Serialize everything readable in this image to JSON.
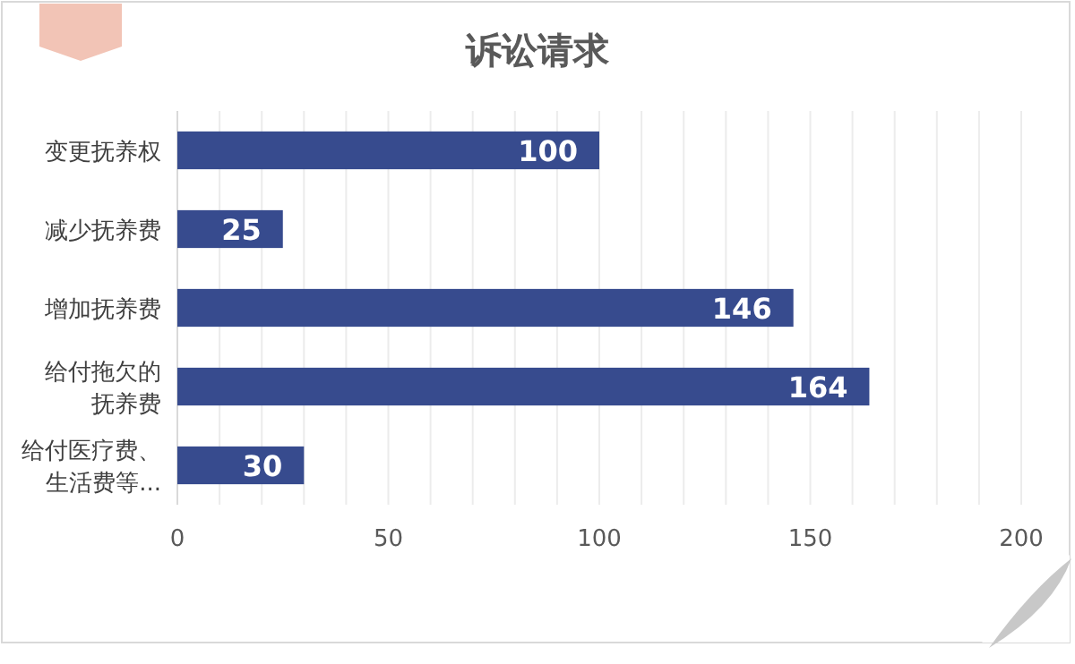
{
  "chart_data": {
    "type": "bar",
    "orientation": "horizontal",
    "title": "诉讼请求",
    "categories": [
      "变更抚养权",
      "减少抚养费",
      "增加抚养费",
      "给付拖欠的抚养费",
      "给付医疗费、生活费等..."
    ],
    "values": [
      100,
      25,
      146,
      164,
      30
    ],
    "color": "#374b8e",
    "data_labels": true,
    "grid": "x",
    "xlim": [
      0,
      200
    ],
    "xticks": [
      0,
      {
        "value": 10,
        "label": null
      },
      {
        "value": 20,
        "label": null
      },
      {
        "value": 30,
        "label": null
      },
      {
        "value": 40,
        "label": null
      },
      50,
      {
        "value": 60,
        "label": null
      },
      {
        "value": 70,
        "label": null
      },
      {
        "value": 80,
        "label": null
      },
      {
        "value": 90,
        "label": null
      },
      100,
      {
        "value": 110,
        "label": null
      },
      {
        "value": 120,
        "label": null
      },
      {
        "value": 130,
        "label": null
      },
      {
        "value": 140,
        "label": null
      },
      150,
      {
        "value": 160,
        "label": null
      },
      {
        "value": 170,
        "label": null
      },
      {
        "value": 180,
        "label": null
      },
      {
        "value": 190,
        "label": null
      },
      200
    ]
  }
}
